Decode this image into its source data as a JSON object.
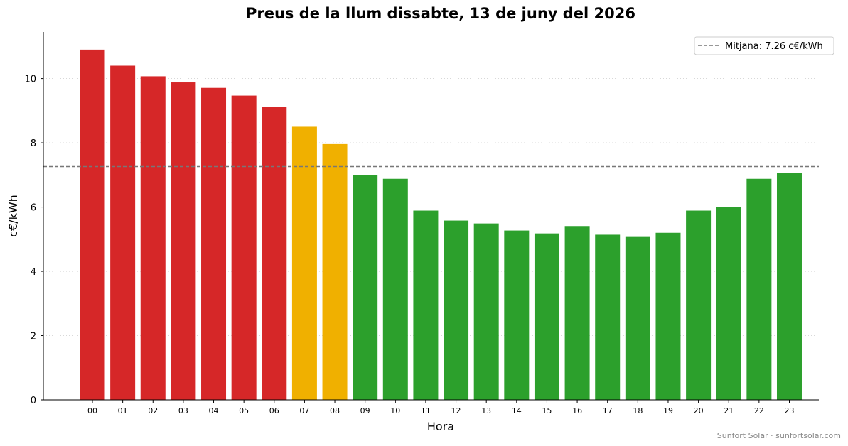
{
  "chart_data": {
    "type": "bar",
    "title": "Preus de la llum dissabte, 13 de juny del 2026",
    "xlabel": "Hora",
    "ylabel": "c€/kWh",
    "categories": [
      "00",
      "01",
      "02",
      "03",
      "04",
      "05",
      "06",
      "07",
      "08",
      "09",
      "10",
      "11",
      "12",
      "13",
      "14",
      "15",
      "16",
      "17",
      "18",
      "19",
      "20",
      "21",
      "22",
      "23"
    ],
    "values": [
      10.9,
      10.4,
      10.07,
      9.88,
      9.71,
      9.47,
      9.11,
      8.5,
      7.96,
      6.99,
      6.88,
      5.89,
      5.58,
      5.49,
      5.27,
      5.18,
      5.41,
      5.14,
      5.07,
      5.2,
      5.89,
      6.01,
      6.88,
      7.06
    ],
    "bar_levels": [
      "high",
      "high",
      "high",
      "high",
      "high",
      "high",
      "high",
      "medium",
      "medium",
      "low",
      "low",
      "low",
      "low",
      "low",
      "low",
      "low",
      "low",
      "low",
      "low",
      "low",
      "low",
      "low",
      "low",
      "low"
    ],
    "colors": {
      "high": "#d62728",
      "medium": "#f0b000",
      "low": "#2ca02c",
      "mean_line": "#777777"
    },
    "ylim": [
      0,
      11.45
    ],
    "yticks": [
      0,
      2,
      4,
      6,
      8,
      10
    ],
    "grid": "y, dotted",
    "mean": {
      "value": 7.26,
      "label": "Mitjana: 7.26 c€/kWh"
    },
    "legend_position": "top-right"
  },
  "footer": "Sunfort Solar · sunfortsolar.com"
}
